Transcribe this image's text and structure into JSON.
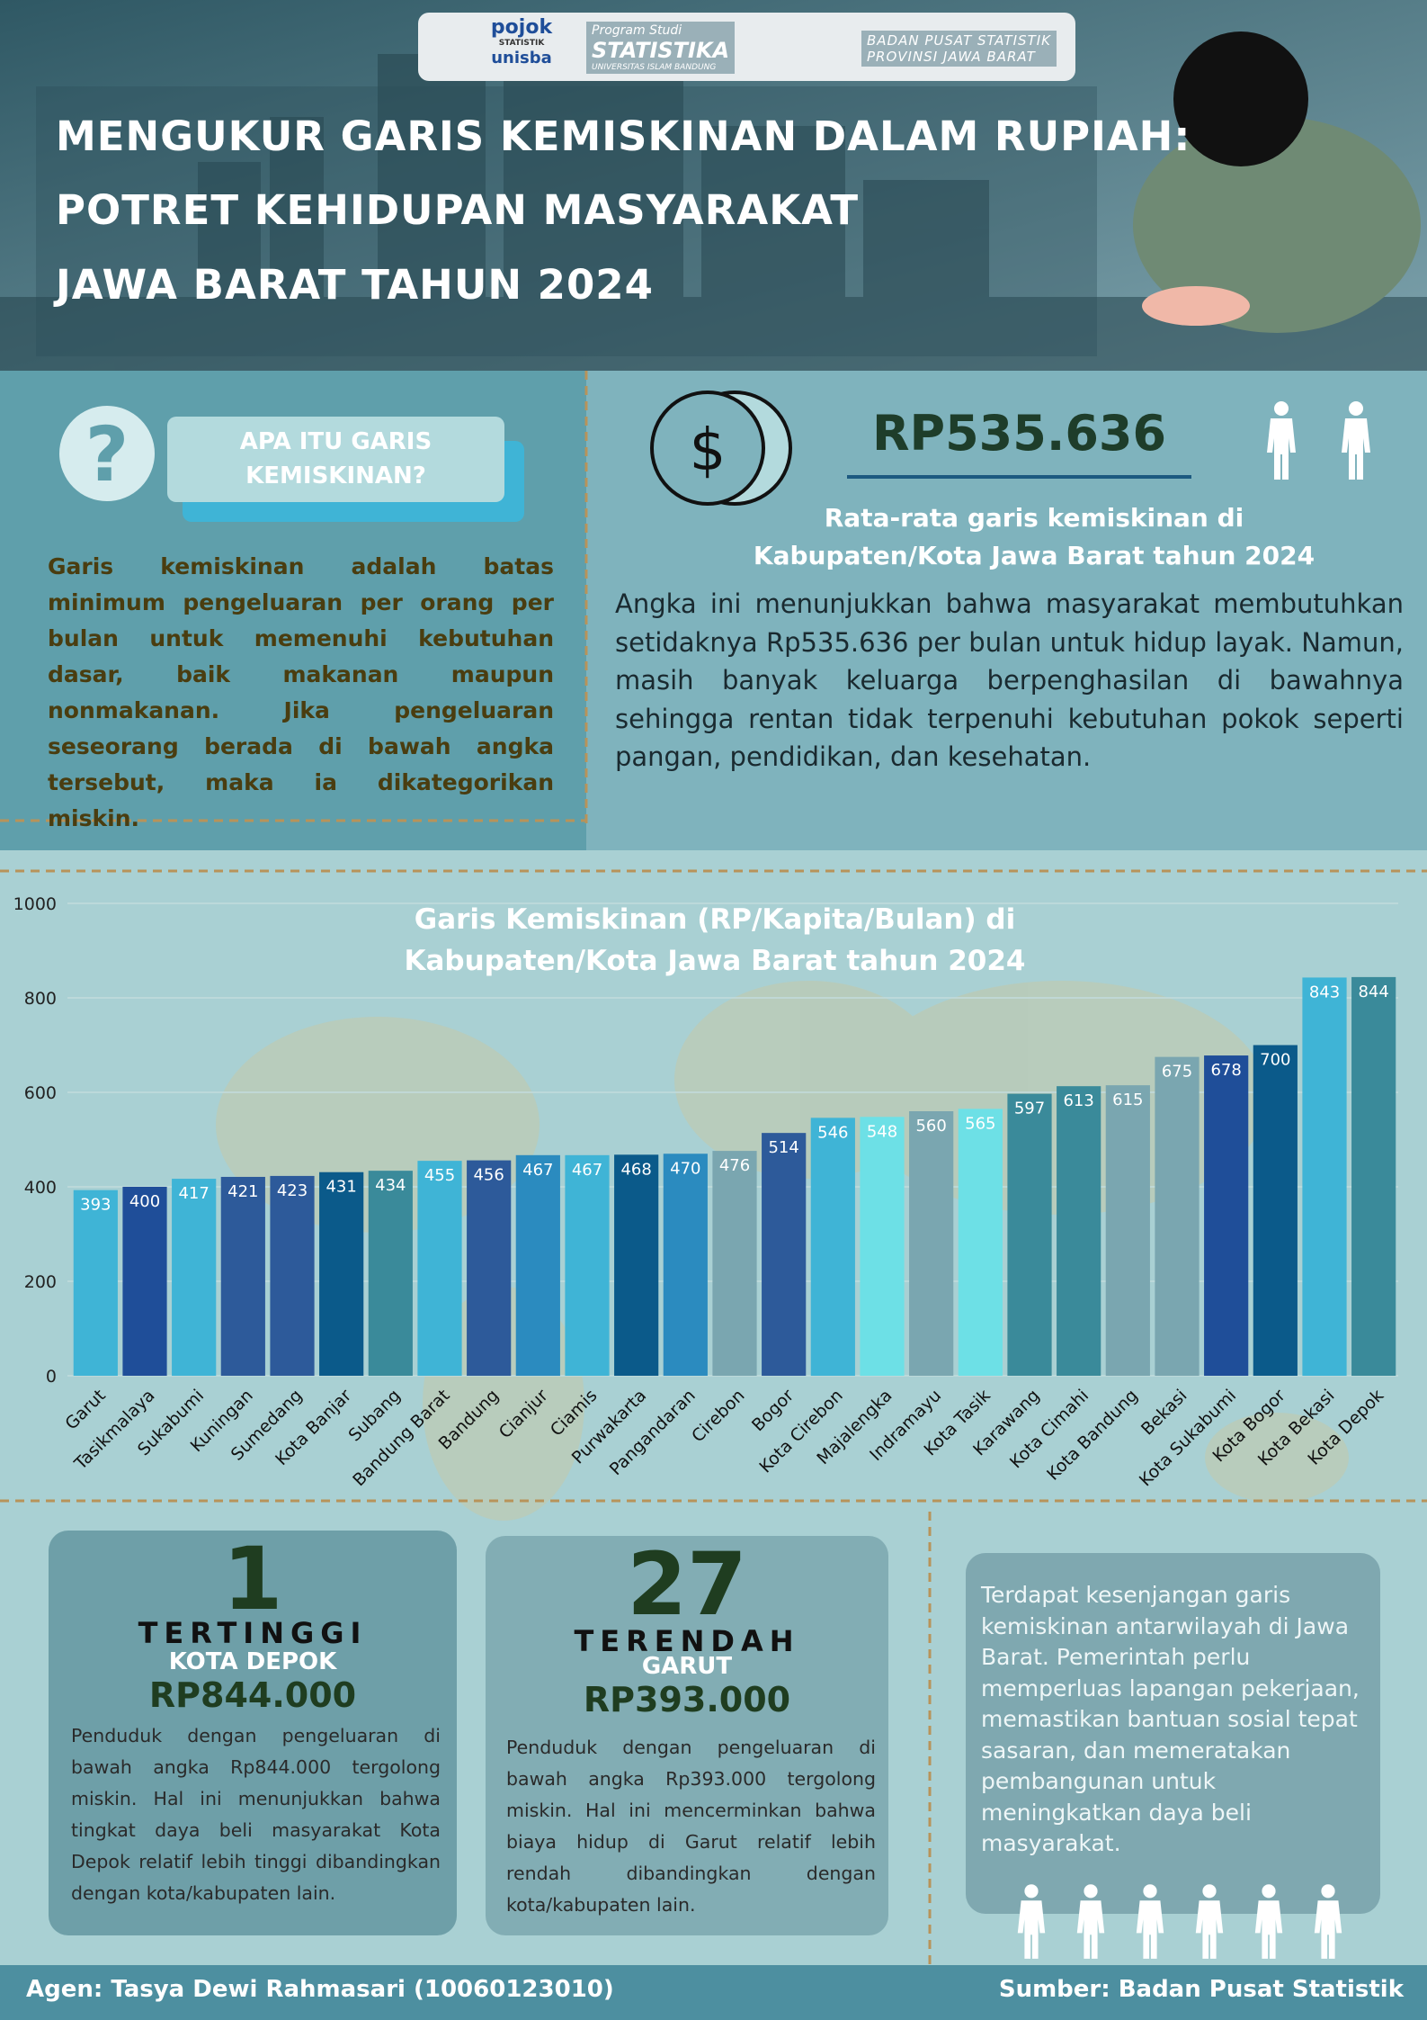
{
  "header": {
    "logos": [
      "pojok",
      "STATISTIK",
      "unisba",
      "Program Studi",
      "STATISTIKA",
      "UNIVERSITAS ISLAM BANDUNG",
      "BADAN PUSAT STATISTIK",
      "PROVINSI JAWA BARAT"
    ],
    "title": [
      "MENGUKUR GARIS KEMISKINAN DALAM RUPIAH:",
      "POTRET KEHIDUPAN MASYARAKAT",
      "JAWA BARAT TAHUN 2024"
    ]
  },
  "definition": {
    "heading": "APA ITU GARIS KEMISKINAN?",
    "body": "Garis kemiskinan adalah batas minimum pengeluaran per orang per bulan untuk memenuhi kebutuhan dasar, baik makanan maupun nonmakanan. Jika pengeluaran seseorang berada di bawah angka tersebut, maka ia dikategorikan miskin."
  },
  "average": {
    "value": "RP535.636",
    "caption": [
      "Rata-rata garis kemiskinan di",
      "Kabupaten/Kota Jawa Barat tahun 2024"
    ],
    "body": "Angka ini menunjukkan bahwa masyarakat membutuhkan setidaknya Rp535.636 per bulan untuk hidup layak. Namun, masih banyak keluarga berpenghasilan di bawahnya sehingga rentan tidak terpenuhi kebutuhan pokok seperti pangan, pendidikan, dan kesehatan."
  },
  "chart_data": {
    "type": "bar",
    "title": [
      "Garis Kemiskinan (RP/Kapita/Bulan) di",
      "Kabupaten/Kota Jawa Barat tahun 2024"
    ],
    "categories": [
      "Garut",
      "Tasikmalaya",
      "Sukabumi",
      "Kuningan",
      "Sumedang",
      "Kota Banjar",
      "Subang",
      "Bandung Barat",
      "Bandung",
      "Cianjur",
      "Ciamis",
      "Purwakarta",
      "Pangandaran",
      "Cirebon",
      "Bogor",
      "Kota Cirebon",
      "Majalengka",
      "Indramayu",
      "Kota Tasik",
      "Karawang",
      "Kota Cimahi",
      "Kota Bandung",
      "Bekasi",
      "Kota Sukabumi",
      "Kota Bogor",
      "Kota Bekasi",
      "Kota Depok"
    ],
    "values": [
      393,
      400,
      417,
      421,
      423,
      431,
      434,
      455,
      456,
      467,
      467,
      468,
      470,
      476,
      514,
      546,
      548,
      560,
      565,
      597,
      613,
      615,
      675,
      678,
      700,
      843,
      844
    ],
    "colors": [
      "#3fb4d6",
      "#1f4e99",
      "#3fb4d6",
      "#2d5a9a",
      "#2d5a9a",
      "#0b5a8a",
      "#3a8a9a",
      "#3fb4d6",
      "#2d5a9a",
      "#2b8bbf",
      "#3fb4d6",
      "#0b5a8a",
      "#2b8bbf",
      "#7aa6b0",
      "#2d5a9a",
      "#3fb4d6",
      "#6de0e6",
      "#7aa6b0",
      "#6de0e6",
      "#3a8a9a",
      "#3a8a9a",
      "#7aa6b0",
      "#7aa6b0",
      "#1f4e99",
      "#0b5a8a",
      "#3fb4d6",
      "#3a8a9a"
    ],
    "ylim": [
      0,
      1000
    ],
    "yticks": [
      0,
      200,
      400,
      600,
      800,
      1000
    ],
    "grid": true
  },
  "cards": [
    {
      "rank": 1,
      "label": "TERTINGGI",
      "region": "KOTA DEPOK",
      "amount": "RP844.000",
      "body": "Penduduk dengan pengeluaran di bawah angka Rp844.000 tergolong miskin. Hal ini menunjukkan bahwa tingkat daya beli masyarakat Kota Depok relatif lebih tinggi dibandingkan dengan kota/kabupaten lain."
    },
    {
      "rank": 27,
      "label": "TERENDAH",
      "region": "GARUT",
      "amount": "RP393.000",
      "body": "Penduduk dengan pengeluaran di bawah angka Rp393.000 tergolong miskin. Hal ini mencerminkan bahwa biaya hidup di Garut relatif lebih rendah dibandingkan dengan kota/kabupaten lain."
    }
  ],
  "conclusion": "Terdapat kesenjangan garis kemiskinan antarwilayah di Jawa Barat. Pemerintah perlu memperluas lapangan pekerjaan, memastikan bantuan sosial tepat sasaran, dan memeratakan pembangunan untuk meningkatkan daya beli masyarakat.",
  "footer": {
    "author": "Agen: Tasya Dewi Rahmasari (10060123010)",
    "source": "Sumber: Badan Pusat Statistik"
  }
}
